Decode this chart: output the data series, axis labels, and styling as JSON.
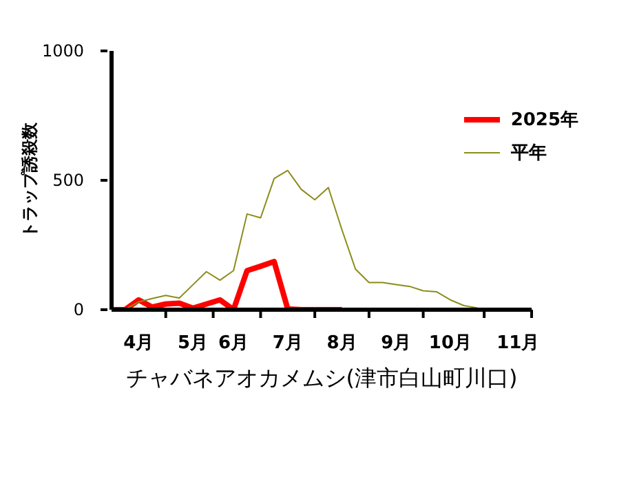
{
  "chart_data": {
    "type": "line",
    "xlabel": "チャバネアオカメムシ(津市白山町川口)",
    "ylabel": "トラップ誘殺数",
    "categories": [
      null,
      null,
      "4月",
      null,
      null,
      null,
      "5月",
      null,
      null,
      "6月",
      null,
      null,
      null,
      "7月",
      null,
      null,
      null,
      "8月",
      null,
      null,
      null,
      "9月",
      null,
      null,
      null,
      "10月",
      null,
      null,
      null,
      null,
      "11月",
      null
    ],
    "ylim": [
      0,
      1000
    ],
    "yticks": [
      0,
      500,
      1000
    ],
    "legend": "top right",
    "marker": "none",
    "series": [
      {
        "name": "2025年",
        "color": "#ff0000",
        "values": [
          0,
          0,
          38,
          10,
          22,
          25,
          6,
          22,
          38,
          0,
          151,
          168,
          186,
          3,
          0,
          0,
          0,
          0,
          null,
          null,
          null,
          null,
          null,
          null,
          null,
          null,
          null,
          null,
          null,
          null,
          null,
          null
        ]
      },
      {
        "name": "平年",
        "color": "#8c8c1a",
        "values": [
          0,
          1,
          30,
          43,
          55,
          45,
          96,
          147,
          114,
          151,
          370,
          355,
          507,
          538,
          465,
          425,
          472,
          309,
          157,
          105,
          105,
          97,
          90,
          73,
          69,
          38,
          16,
          7,
          null,
          null,
          null,
          null
        ]
      }
    ]
  }
}
